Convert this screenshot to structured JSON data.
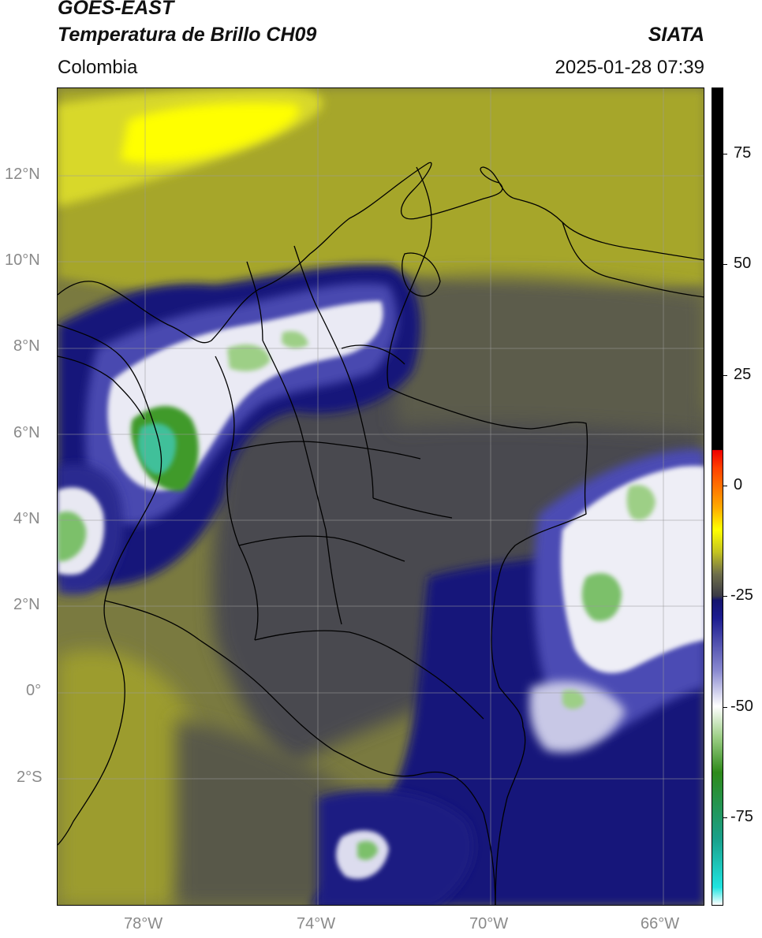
{
  "header": {
    "satellite": "GOES-EAST",
    "product": "Temperatura de Brillo CH09",
    "organization": "SIATA",
    "region": "Colombia",
    "timestamp": "2025-01-28 07:39"
  },
  "axes": {
    "lon_ticks": [
      "78°W",
      "74°W",
      "70°W",
      "66°W"
    ],
    "lat_ticks": [
      "12°N",
      "10°N",
      "8°N",
      "6°N",
      "4°N",
      "2°N",
      "0°",
      "2°S"
    ]
  },
  "colorbar": {
    "ticks": [
      "75",
      "50",
      "25",
      "0",
      "-25",
      "-50",
      "-75"
    ],
    "tick_values": [
      75,
      50,
      25,
      0,
      -25,
      -50,
      -75
    ],
    "range": [
      -95,
      90
    ],
    "stops": [
      {
        "v": -95,
        "c": "#ffffff"
      },
      {
        "v": -91,
        "c": "#20e4e0"
      },
      {
        "v": -80,
        "c": "#1aa08a"
      },
      {
        "v": -65,
        "c": "#2e8a1a"
      },
      {
        "v": -57,
        "c": "#9dcf86"
      },
      {
        "v": -50,
        "c": "#ffffff"
      },
      {
        "v": -42,
        "c": "#8a8ad0"
      },
      {
        "v": -30,
        "c": "#1c1c90"
      },
      {
        "v": -26,
        "c": "#14146e"
      },
      {
        "v": -25,
        "c": "#3a3a46"
      },
      {
        "v": -20,
        "c": "#6f6f4a"
      },
      {
        "v": -15,
        "c": "#c4c420"
      },
      {
        "v": -10,
        "c": "#ffff00"
      },
      {
        "v": -5,
        "c": "#ffaa00"
      },
      {
        "v": 4,
        "c": "#ff4000"
      },
      {
        "v": 8,
        "c": "#ee0000"
      },
      {
        "v": 8.1,
        "c": "#000000"
      },
      {
        "v": 90,
        "c": "#000000"
      }
    ]
  },
  "map": {
    "colors": {
      "yellow": "#ffff00",
      "olive_light": "#c8c824",
      "olive": "#9a9a2c",
      "olive_dark": "#6e6e48",
      "gray_dark": "#474752",
      "navy": "#14147a",
      "blue_mid": "#4848b0",
      "white_cloud": "#f0f0f8",
      "green_light": "#9dcf86",
      "green": "#3f9a2a",
      "teal": "#3fc09a"
    }
  }
}
